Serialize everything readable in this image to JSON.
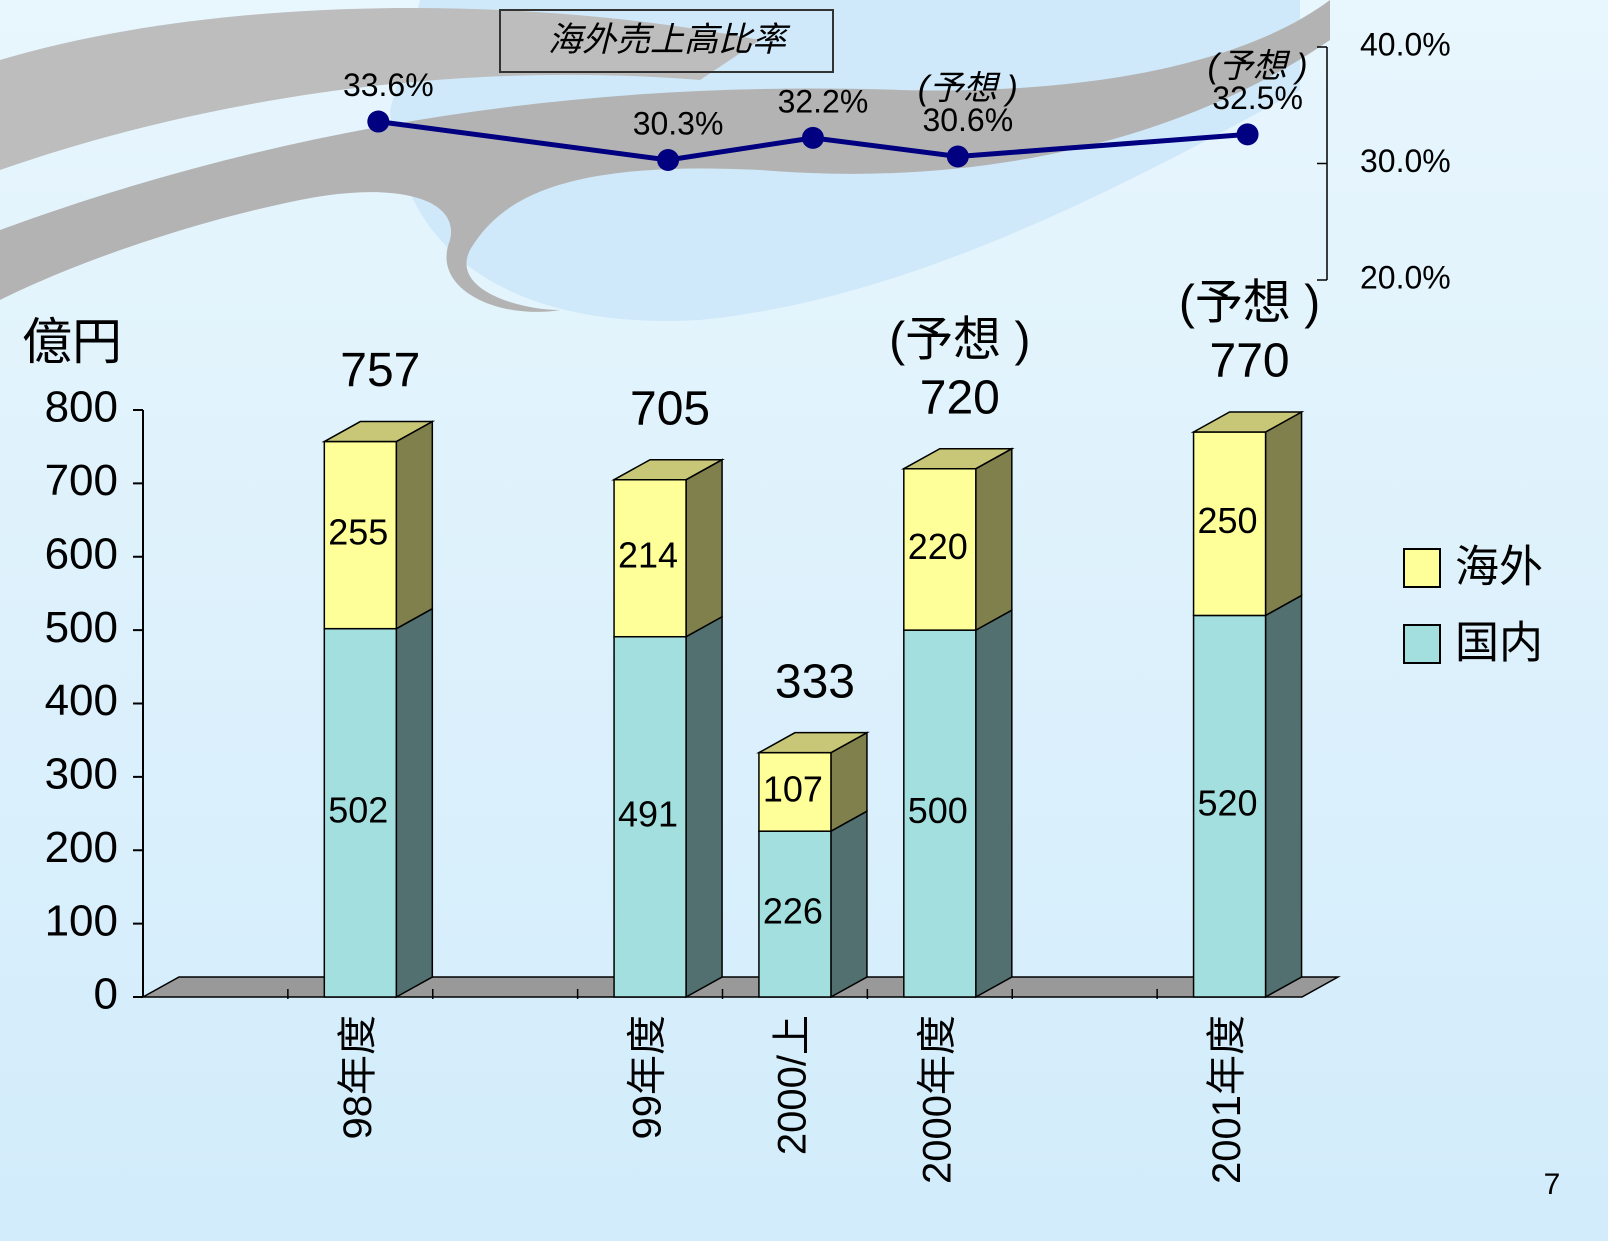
{
  "chart_data": [
    {
      "type": "line",
      "title": "海外売上高比率",
      "values": [
        33.6,
        30.3,
        32.2,
        30.6,
        32.5
      ],
      "value_labels": [
        "33.6%",
        "30.3%",
        "32.2%",
        "30.6%",
        "32.5%"
      ],
      "notes": [
        null,
        null,
        null,
        "(予想 )",
        "(予想 )"
      ],
      "color": "#000080",
      "ylim": [
        20,
        40
      ],
      "yticks": [
        {
          "value": 20,
          "label": "20.0%"
        },
        {
          "value": 30,
          "label": "30.0%"
        },
        {
          "value": 40,
          "label": "40.0%"
        }
      ]
    },
    {
      "type": "stacked-bar-3d",
      "y_label": "億円",
      "categories": [
        null,
        "98年度",
        null,
        "99年度",
        "2000/上",
        "2000年度",
        null,
        "2001年度"
      ],
      "series": [
        {
          "name": "国内",
          "color": "#a3dfdf",
          "values": [
            null,
            502,
            null,
            491,
            226,
            500,
            null,
            520
          ]
        },
        {
          "name": "海外",
          "color": "#ffff99",
          "values": [
            null,
            255,
            null,
            214,
            107,
            220,
            null,
            250
          ]
        }
      ],
      "totals": [
        null,
        757,
        null,
        705,
        333,
        720,
        null,
        770
      ],
      "notes": [
        null,
        null,
        null,
        null,
        null,
        "(予想 )",
        null,
        "(予想 )"
      ],
      "ylim": [
        0,
        800
      ],
      "yticks": [
        0,
        100,
        200,
        300,
        400,
        500,
        600,
        700,
        800
      ],
      "legend": "right"
    }
  ],
  "page_number": "7"
}
